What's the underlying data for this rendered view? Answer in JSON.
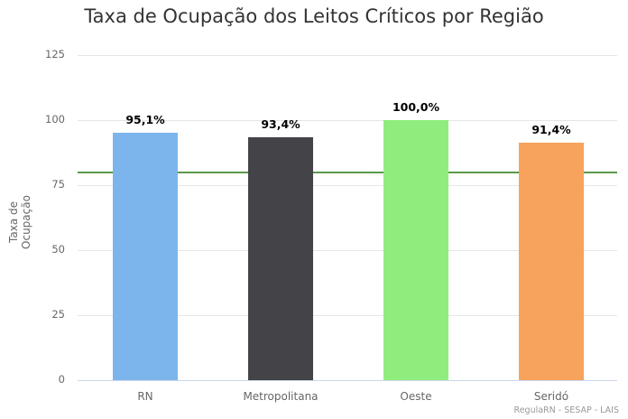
{
  "chart_data": {
    "type": "bar",
    "title": "Taxa de Ocupação dos Leitos Críticos por Região",
    "xlabel": "",
    "ylabel": "Taxa de Ocupação",
    "categories": [
      "RN",
      "Metropolitana",
      "Oeste",
      "Seridó"
    ],
    "values": [
      95.1,
      93.4,
      100.0,
      91.4
    ],
    "data_labels": [
      "95,1%",
      "93,4%",
      "100,0%",
      "91,4%"
    ],
    "colors": [
      "#7cb5ec",
      "#434348",
      "#90ed7d",
      "#f7a35c"
    ],
    "ylim": [
      0,
      125
    ],
    "yticks": [
      0,
      25,
      50,
      75,
      100,
      125
    ],
    "reference_line": {
      "value": 80,
      "color": "#5a9a4a"
    },
    "grid": true,
    "legend": null,
    "credit": "RegulaRN - SESAP - LAIS"
  },
  "labels": {
    "title": "Taxa de Ocupação dos Leitos Críticos por Região",
    "ylabel": "Taxa de Ocupação",
    "credit": "RegulaRN - SESAP - LAIS",
    "ticks": [
      "125",
      "100",
      "75",
      "50",
      "25",
      "0"
    ]
  }
}
